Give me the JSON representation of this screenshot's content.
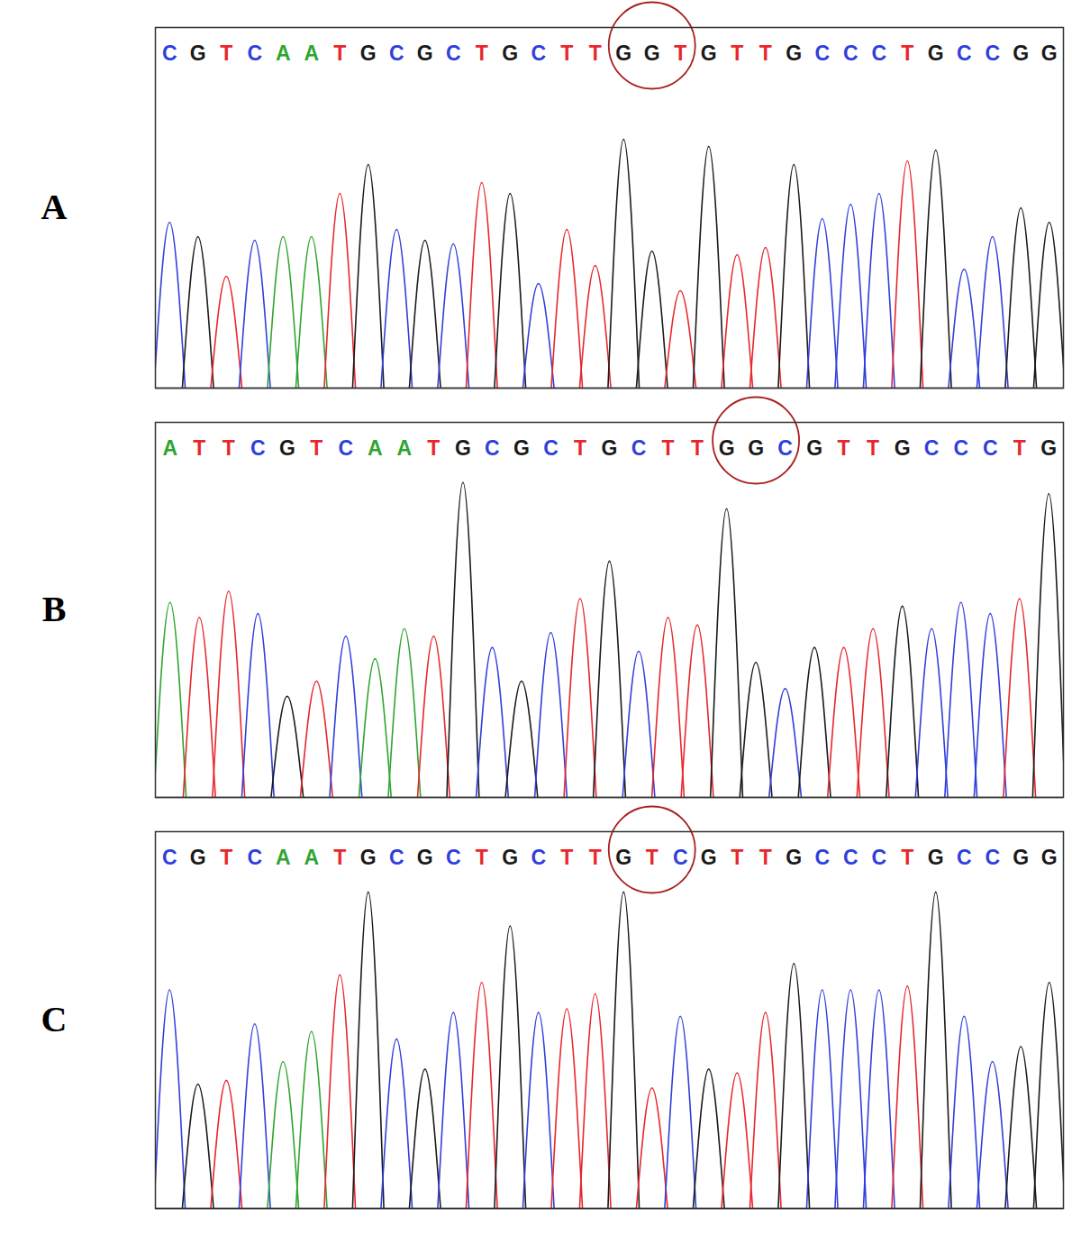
{
  "chart_data": [
    {
      "type": "chromatogram",
      "title": "A",
      "categories": [
        "C",
        "G",
        "T",
        "C",
        "A",
        "A",
        "T",
        "G",
        "C",
        "G",
        "C",
        "T",
        "G",
        "C",
        "T",
        "T",
        "G",
        "G",
        "T",
        "G",
        "T",
        "T",
        "G",
        "C",
        "C",
        "C",
        "T",
        "G",
        "C",
        "C",
        "G",
        "G"
      ],
      "values": [
        46,
        42,
        31,
        41,
        42,
        42,
        54,
        62,
        44,
        41,
        40,
        57,
        54,
        29,
        44,
        34,
        69,
        38,
        27,
        67,
        37,
        39,
        62,
        47,
        51,
        54,
        63,
        66,
        33,
        42,
        50,
        46
      ],
      "colors": [
        "#2f3fdc",
        "#1a1a1a",
        "#e8262c",
        "#2f3fdc",
        "#2fa52f",
        "#2fa52f",
        "#e8262c",
        "#1a1a1a",
        "#2f3fdc",
        "#1a1a1a",
        "#2f3fdc",
        "#e8262c",
        "#1a1a1a",
        "#2f3fdc",
        "#e8262c",
        "#e8262c",
        "#1a1a1a",
        "#1a1a1a",
        "#e8262c",
        "#1a1a1a",
        "#e8262c",
        "#e8262c",
        "#1a1a1a",
        "#2f3fdc",
        "#2f3fdc",
        "#2f3fdc",
        "#e8262c",
        "#1a1a1a",
        "#2f3fdc",
        "#2f3fdc",
        "#1a1a1a",
        "#1a1a1a"
      ],
      "circled": [
        16,
        18
      ],
      "ylim": [
        0,
        100
      ],
      "tick_labels": false,
      "grid": false
    },
    {
      "type": "chromatogram",
      "title": "B",
      "categories": [
        "A",
        "T",
        "T",
        "C",
        "G",
        "T",
        "C",
        "A",
        "A",
        "T",
        "G",
        "C",
        "G",
        "C",
        "T",
        "G",
        "C",
        "T",
        "T",
        "G",
        "G",
        "C",
        "G",
        "T",
        "T",
        "G",
        "C",
        "C",
        "C",
        "T",
        "G"
      ],
      "values": [
        52,
        48,
        55,
        49,
        27,
        31,
        43,
        37,
        45,
        43,
        84,
        40,
        31,
        44,
        53,
        63,
        39,
        48,
        46,
        77,
        36,
        29,
        40,
        40,
        45,
        51,
        45,
        52,
        49,
        53,
        81
      ],
      "colors": [
        "#2fa52f",
        "#e8262c",
        "#e8262c",
        "#2f3fdc",
        "#1a1a1a",
        "#e8262c",
        "#2f3fdc",
        "#2fa52f",
        "#2fa52f",
        "#e8262c",
        "#1a1a1a",
        "#2f3fdc",
        "#1a1a1a",
        "#2f3fdc",
        "#e8262c",
        "#1a1a1a",
        "#2f3fdc",
        "#e8262c",
        "#e8262c",
        "#1a1a1a",
        "#1a1a1a",
        "#2f3fdc",
        "#1a1a1a",
        "#e8262c",
        "#e8262c",
        "#1a1a1a",
        "#2f3fdc",
        "#2f3fdc",
        "#2f3fdc",
        "#e8262c",
        "#1a1a1a"
      ],
      "circled": [
        19,
        21
      ],
      "ylim": [
        0,
        100
      ],
      "tick_labels": false,
      "grid": false
    },
    {
      "type": "chromatogram",
      "title": "C",
      "categories": [
        "C",
        "G",
        "T",
        "C",
        "A",
        "A",
        "T",
        "G",
        "C",
        "G",
        "C",
        "T",
        "G",
        "C",
        "T",
        "T",
        "G",
        "T",
        "C",
        "G",
        "T",
        "T",
        "G",
        "C",
        "C",
        "C",
        "T",
        "G",
        "C",
        "C",
        "G",
        "G"
      ],
      "values": [
        58,
        33,
        34,
        49,
        39,
        47,
        62,
        84,
        45,
        37,
        52,
        60,
        75,
        52,
        53,
        57,
        84,
        32,
        51,
        37,
        36,
        52,
        65,
        58,
        58,
        58,
        59,
        84,
        51,
        39,
        43,
        60
      ],
      "colors": [
        "#2f3fdc",
        "#1a1a1a",
        "#e8262c",
        "#2f3fdc",
        "#2fa52f",
        "#2fa52f",
        "#e8262c",
        "#1a1a1a",
        "#2f3fdc",
        "#1a1a1a",
        "#2f3fdc",
        "#e8262c",
        "#1a1a1a",
        "#2f3fdc",
        "#e8262c",
        "#e8262c",
        "#1a1a1a",
        "#e8262c",
        "#2f3fdc",
        "#1a1a1a",
        "#e8262c",
        "#e8262c",
        "#1a1a1a",
        "#2f3fdc",
        "#2f3fdc",
        "#2f3fdc",
        "#e8262c",
        "#1a1a1a",
        "#2f3fdc",
        "#2f3fdc",
        "#1a1a1a",
        "#1a1a1a"
      ],
      "circled": [
        16,
        18
      ],
      "ylim": [
        0,
        100
      ],
      "tick_labels": false,
      "grid": false
    }
  ]
}
